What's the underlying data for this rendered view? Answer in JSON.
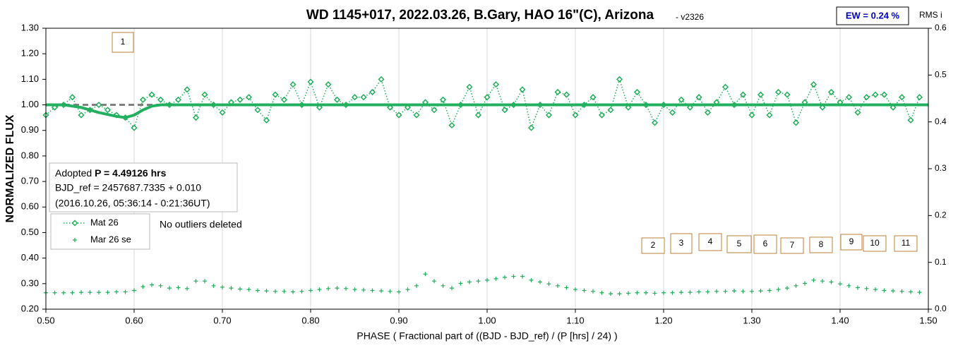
{
  "chart_data": {
    "type": "scatter",
    "title": "WD 1145+017, 2022.03.26, B.Gary, HAO 16\"(C), Arizona",
    "subtitle": "- v2326",
    "badge": "EW = 0.24 %",
    "y2_title": "RMS i",
    "x_title": "PHASE  ( Fractional part of ((BJD - BJD_ref) / (P [hrs] / 24) )",
    "y_title": "NORMALIZED FLUX",
    "info": {
      "prefix": "Adopted ",
      "period": "P = 4.49126 hrs",
      "line2": "BJD_ref = 2457687.7335 + 0.010",
      "line3": "(2016.10.26, 05:36:14 - 0:21:36UT)"
    },
    "note": "No outliers deleted",
    "boxes": [
      "1",
      "2",
      "3",
      "4",
      "5",
      "6",
      "7",
      "8",
      "9",
      "10",
      "11"
    ],
    "xlim": [
      0.5,
      1.5
    ],
    "xticks": [
      {
        "value": 0.5,
        "label": "0.50"
      },
      {
        "value": 0.6,
        "label": "0.60"
      },
      {
        "value": 0.7,
        "label": "0.70"
      },
      {
        "value": 0.8,
        "label": "0.80"
      },
      {
        "value": 0.9,
        "label": "0.90"
      },
      {
        "value": 1.0,
        "label": "1.00"
      },
      {
        "value": 1.1,
        "label": "1.10"
      },
      {
        "value": 1.2,
        "label": "1.20"
      },
      {
        "value": 1.3,
        "label": "1.30"
      },
      {
        "value": 1.4,
        "label": "1.40"
      },
      {
        "value": 1.5,
        "label": "1.50"
      }
    ],
    "ylim": [
      0.2,
      1.3
    ],
    "yticks": [
      {
        "value": 0.2,
        "label": "0.20"
      },
      {
        "value": 0.3,
        "label": "0.30"
      },
      {
        "value": 0.4,
        "label": "0.40"
      },
      {
        "value": 0.5,
        "label": "0.50"
      },
      {
        "value": 0.6,
        "label": "0.60"
      },
      {
        "value": 0.7,
        "label": "0.70"
      },
      {
        "value": 0.8,
        "label": "0.80"
      },
      {
        "value": 0.9,
        "label": "0.90"
      },
      {
        "value": 1.0,
        "label": "1.00"
      },
      {
        "value": 1.1,
        "label": "1.10"
      },
      {
        "value": 1.2,
        "label": "1.20"
      },
      {
        "value": 1.3,
        "label": "1.30"
      }
    ],
    "y2lim": [
      0,
      0.6
    ],
    "y2ticks": [
      {
        "value": 0,
        "label": "0.0"
      },
      0.1,
      0.2,
      0.3,
      0.4,
      0.5,
      0.6
    ],
    "grid": "x",
    "series": [
      {
        "name": "Mat 26",
        "color": "#1fae5a",
        "marker": "diamond",
        "x": [
          0.5,
          0.51,
          0.52,
          0.53,
          0.54,
          0.55,
          0.56,
          0.57,
          0.58,
          0.59,
          0.6,
          0.61,
          0.62,
          0.63,
          0.64,
          0.65,
          0.66,
          0.67,
          0.68,
          0.69,
          0.7,
          0.71,
          0.72,
          0.73,
          0.74,
          0.75,
          0.76,
          0.77,
          0.78,
          0.79,
          0.8,
          0.81,
          0.82,
          0.83,
          0.84,
          0.85,
          0.86,
          0.87,
          0.88,
          0.89,
          0.9,
          0.91,
          0.92,
          0.93,
          0.94,
          0.95,
          0.96,
          0.97,
          0.98,
          0.99,
          1.0,
          1.01,
          1.02,
          1.03,
          1.04,
          1.05,
          1.06,
          1.07,
          1.08,
          1.09,
          1.1,
          1.11,
          1.12,
          1.13,
          1.14,
          1.15,
          1.16,
          1.17,
          1.18,
          1.19,
          1.2,
          1.21,
          1.22,
          1.23,
          1.24,
          1.25,
          1.26,
          1.27,
          1.28,
          1.29,
          1.3,
          1.31,
          1.32,
          1.33,
          1.34,
          1.35,
          1.36,
          1.37,
          1.38,
          1.39,
          1.4,
          1.41,
          1.42,
          1.43,
          1.44,
          1.45,
          1.46,
          1.47,
          1.48,
          1.49
        ],
        "values": [
          0.96,
          0.99,
          1.0,
          1.03,
          0.96,
          0.98,
          1.0,
          0.98,
          0.96,
          0.95,
          0.91,
          1.02,
          1.04,
          1.02,
          1.0,
          1.02,
          1.06,
          0.95,
          1.04,
          1.0,
          0.97,
          1.01,
          1.02,
          1.03,
          0.98,
          0.94,
          1.04,
          1.02,
          1.08,
          1.0,
          1.09,
          0.99,
          1.08,
          1.02,
          1.0,
          1.03,
          1.03,
          1.05,
          1.1,
          0.99,
          0.96,
          0.99,
          0.96,
          1.01,
          0.98,
          1.02,
          0.92,
          1.0,
          1.07,
          0.96,
          1.03,
          1.08,
          0.98,
          1.0,
          1.06,
          0.91,
          1.0,
          0.96,
          1.05,
          1.04,
          0.96,
          1.0,
          1.03,
          0.96,
          0.98,
          1.1,
          0.99,
          1.05,
          1.0,
          0.93,
          1.0,
          0.97,
          1.02,
          0.99,
          1.03,
          0.97,
          1.01,
          1.07,
          1.0,
          1.04,
          0.96,
          1.04,
          0.96,
          1.05,
          1.04,
          0.93,
          1.01,
          1.08,
          0.99,
          1.05,
          1.01,
          1.03,
          0.97,
          1.03,
          1.04,
          1.04,
          0.99,
          1.03,
          0.94,
          1.03
        ]
      },
      {
        "name": "Mar 26 se",
        "color": "#1fae5a",
        "marker": "plus",
        "axis": "y2",
        "x": [
          0.5,
          0.51,
          0.52,
          0.53,
          0.54,
          0.55,
          0.56,
          0.57,
          0.58,
          0.59,
          0.6,
          0.61,
          0.62,
          0.63,
          0.64,
          0.65,
          0.66,
          0.67,
          0.68,
          0.69,
          0.7,
          0.71,
          0.72,
          0.73,
          0.74,
          0.75,
          0.76,
          0.77,
          0.78,
          0.79,
          0.8,
          0.81,
          0.82,
          0.83,
          0.84,
          0.85,
          0.86,
          0.87,
          0.88,
          0.89,
          0.9,
          0.91,
          0.92,
          0.93,
          0.94,
          0.95,
          0.96,
          0.97,
          0.98,
          0.99,
          1.0,
          1.01,
          1.02,
          1.03,
          1.04,
          1.05,
          1.06,
          1.07,
          1.08,
          1.09,
          1.1,
          1.11,
          1.12,
          1.13,
          1.14,
          1.15,
          1.16,
          1.17,
          1.18,
          1.19,
          1.2,
          1.21,
          1.22,
          1.23,
          1.24,
          1.25,
          1.26,
          1.27,
          1.28,
          1.29,
          1.3,
          1.31,
          1.32,
          1.33,
          1.34,
          1.35,
          1.36,
          1.37,
          1.38,
          1.39,
          1.4,
          1.41,
          1.42,
          1.43,
          1.44,
          1.45,
          1.46,
          1.47,
          1.48,
          1.49
        ],
        "values": [
          0.035,
          0.035,
          0.035,
          0.035,
          0.036,
          0.036,
          0.036,
          0.036,
          0.037,
          0.037,
          0.04,
          0.048,
          0.052,
          0.05,
          0.045,
          0.046,
          0.044,
          0.06,
          0.06,
          0.05,
          0.047,
          0.045,
          0.043,
          0.042,
          0.04,
          0.039,
          0.038,
          0.038,
          0.037,
          0.038,
          0.04,
          0.042,
          0.044,
          0.045,
          0.044,
          0.042,
          0.041,
          0.04,
          0.039,
          0.038,
          0.037,
          0.042,
          0.05,
          0.075,
          0.06,
          0.05,
          0.045,
          0.055,
          0.058,
          0.06,
          0.062,
          0.065,
          0.068,
          0.07,
          0.07,
          0.062,
          0.058,
          0.054,
          0.05,
          0.046,
          0.042,
          0.04,
          0.038,
          0.035,
          0.033,
          0.033,
          0.034,
          0.035,
          0.035,
          0.034,
          0.035,
          0.035,
          0.036,
          0.036,
          0.037,
          0.037,
          0.038,
          0.038,
          0.039,
          0.038,
          0.038,
          0.039,
          0.04,
          0.042,
          0.045,
          0.05,
          0.055,
          0.062,
          0.06,
          0.058,
          0.054,
          0.05,
          0.046,
          0.044,
          0.042,
          0.04,
          0.039,
          0.038,
          0.037,
          0.036
        ]
      }
    ],
    "model": {
      "color": "#22b060",
      "x": [
        0.5,
        0.52,
        0.54,
        0.56,
        0.58,
        0.59,
        0.6,
        0.61,
        0.62,
        0.63,
        0.65,
        1.5
      ],
      "values": [
        1.0,
        1.0,
        0.99,
        0.97,
        0.955,
        0.95,
        0.96,
        0.98,
        0.995,
        1.0,
        1.0,
        1.0
      ]
    },
    "baseline": {
      "color": "#808080",
      "x": [
        0.5,
        0.63
      ],
      "values": [
        1.0,
        1.0
      ]
    }
  }
}
